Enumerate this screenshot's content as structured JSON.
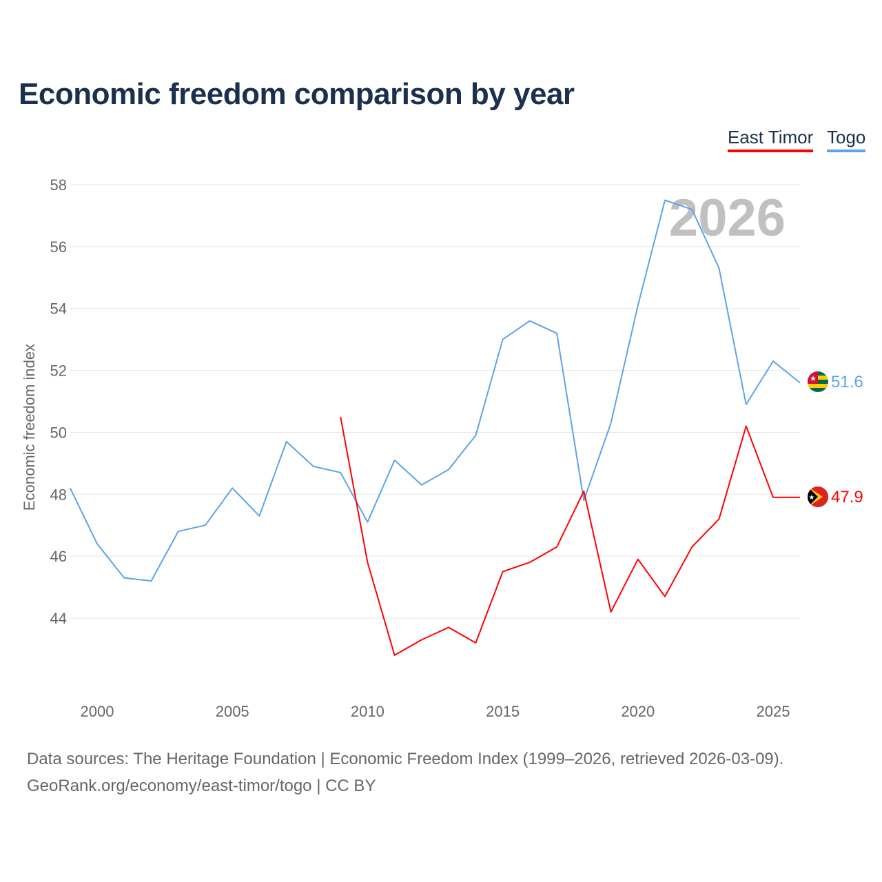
{
  "chart_data": {
    "type": "line",
    "title": "Economic freedom comparison by year",
    "xlabel": "",
    "ylabel": "Economic freedom index",
    "xlim": [
      1999,
      2026
    ],
    "ylim": [
      42,
      58
    ],
    "yticks": [
      44,
      46,
      48,
      50,
      52,
      54,
      56,
      58
    ],
    "xticks": [
      2000,
      2005,
      2010,
      2015,
      2020,
      2025
    ],
    "grid": true,
    "legend_position": "top-right",
    "watermark_year": "2026",
    "series": [
      {
        "name": "East Timor",
        "color": "#ff0000",
        "x": [
          2009,
          2010,
          2011,
          2012,
          2013,
          2014,
          2015,
          2016,
          2017,
          2018,
          2019,
          2020,
          2021,
          2022,
          2023,
          2024,
          2025,
          2026
        ],
        "values": [
          50.5,
          45.8,
          42.8,
          43.3,
          43.7,
          43.2,
          45.5,
          45.8,
          46.3,
          48.1,
          44.2,
          45.9,
          44.7,
          46.3,
          47.2,
          50.2,
          47.9,
          47.9
        ],
        "end_label": "47.9",
        "flag": "east-timor-flag"
      },
      {
        "name": "Togo",
        "color": "#5ba3ea",
        "x": [
          1999,
          2000,
          2001,
          2002,
          2003,
          2004,
          2005,
          2006,
          2007,
          2008,
          2009,
          2010,
          2011,
          2012,
          2013,
          2014,
          2015,
          2016,
          2017,
          2018,
          2019,
          2020,
          2021,
          2022,
          2023,
          2024,
          2025,
          2026
        ],
        "values": [
          48.2,
          46.4,
          45.3,
          45.2,
          46.8,
          47.0,
          48.2,
          47.3,
          49.7,
          48.9,
          48.7,
          47.1,
          49.1,
          48.3,
          48.8,
          49.9,
          53.0,
          53.6,
          53.2,
          47.8,
          50.3,
          54.1,
          57.5,
          57.2,
          55.3,
          50.9,
          52.3,
          51.6
        ],
        "end_label": "51.6",
        "flag": "togo-flag"
      }
    ]
  },
  "footer": {
    "sources": "Data sources: The Heritage Foundation | Economic Freedom Index (1999–2026, retrieved 2026-03-09).",
    "credit": "GeoRank.org/economy/east-timor/togo | CC BY"
  }
}
